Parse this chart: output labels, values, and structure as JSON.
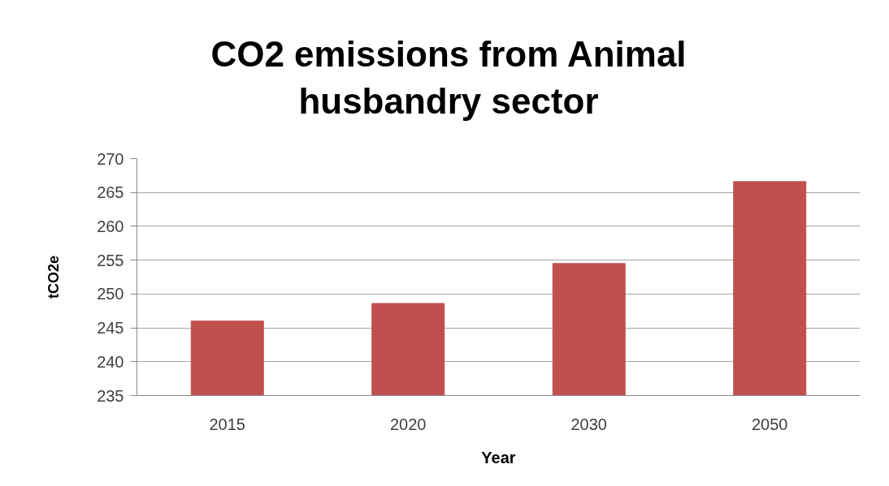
{
  "chart_data": {
    "type": "bar",
    "title": "CO2 emissions from Animal husbandry sector",
    "xlabel": "Year",
    "ylabel": "tCO2e",
    "categories": [
      "2015",
      "2020",
      "2030",
      "2050"
    ],
    "values": [
      246.0,
      248.6,
      254.5,
      266.6
    ],
    "color": "#c0504d",
    "ylim": [
      235,
      270
    ],
    "yticks": [
      235,
      240,
      245,
      250,
      255,
      260,
      265,
      270
    ],
    "grid": "y"
  }
}
